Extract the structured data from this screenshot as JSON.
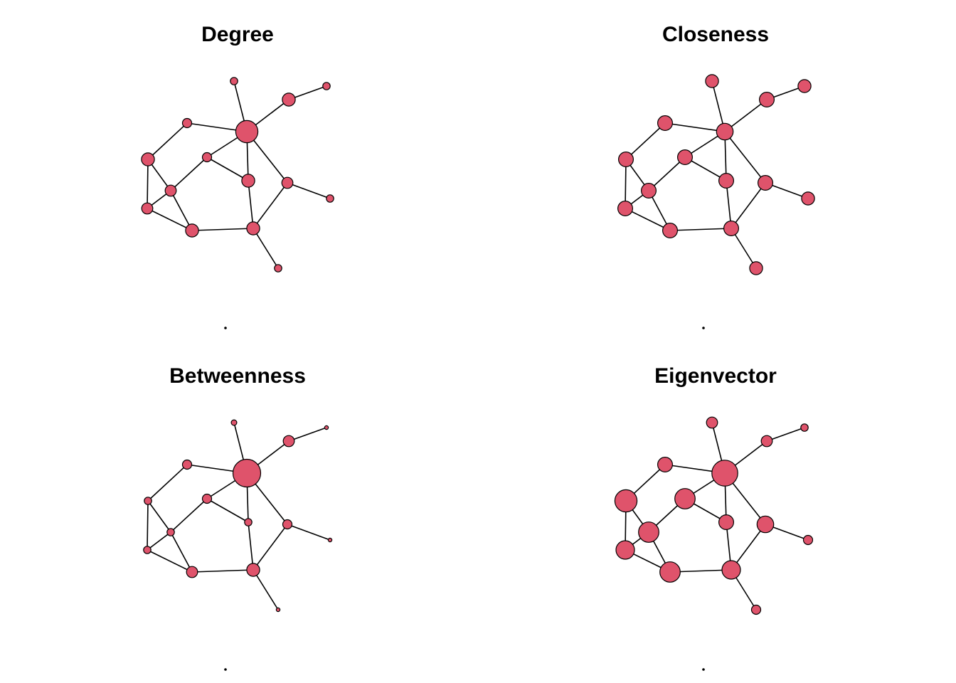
{
  "node_color": "#df536b",
  "edge_color": "#000000",
  "panels": [
    {
      "id": "degree",
      "title": "Degree",
      "sizes": [
        4,
        7,
        12,
        5,
        7,
        5,
        7,
        6,
        6,
        6,
        7,
        7,
        4,
        4,
        4,
        1
      ]
    },
    {
      "id": "closeness",
      "title": "Closeness",
      "sizes": [
        7,
        8,
        9,
        8,
        8,
        8,
        8,
        8,
        8,
        8,
        8,
        8,
        7,
        7,
        7,
        1
      ]
    },
    {
      "id": "betweenness",
      "title": "Betweenness",
      "sizes": [
        3,
        6,
        15,
        5,
        4,
        5,
        4,
        5,
        4,
        4,
        6,
        7,
        2,
        2,
        2,
        1
      ]
    },
    {
      "id": "eigenvector",
      "title": "Eigenvector",
      "sizes": [
        6,
        6,
        14,
        8,
        12,
        11,
        8,
        9,
        11,
        10,
        11,
        10,
        4,
        5,
        5,
        1
      ]
    }
  ]
}
